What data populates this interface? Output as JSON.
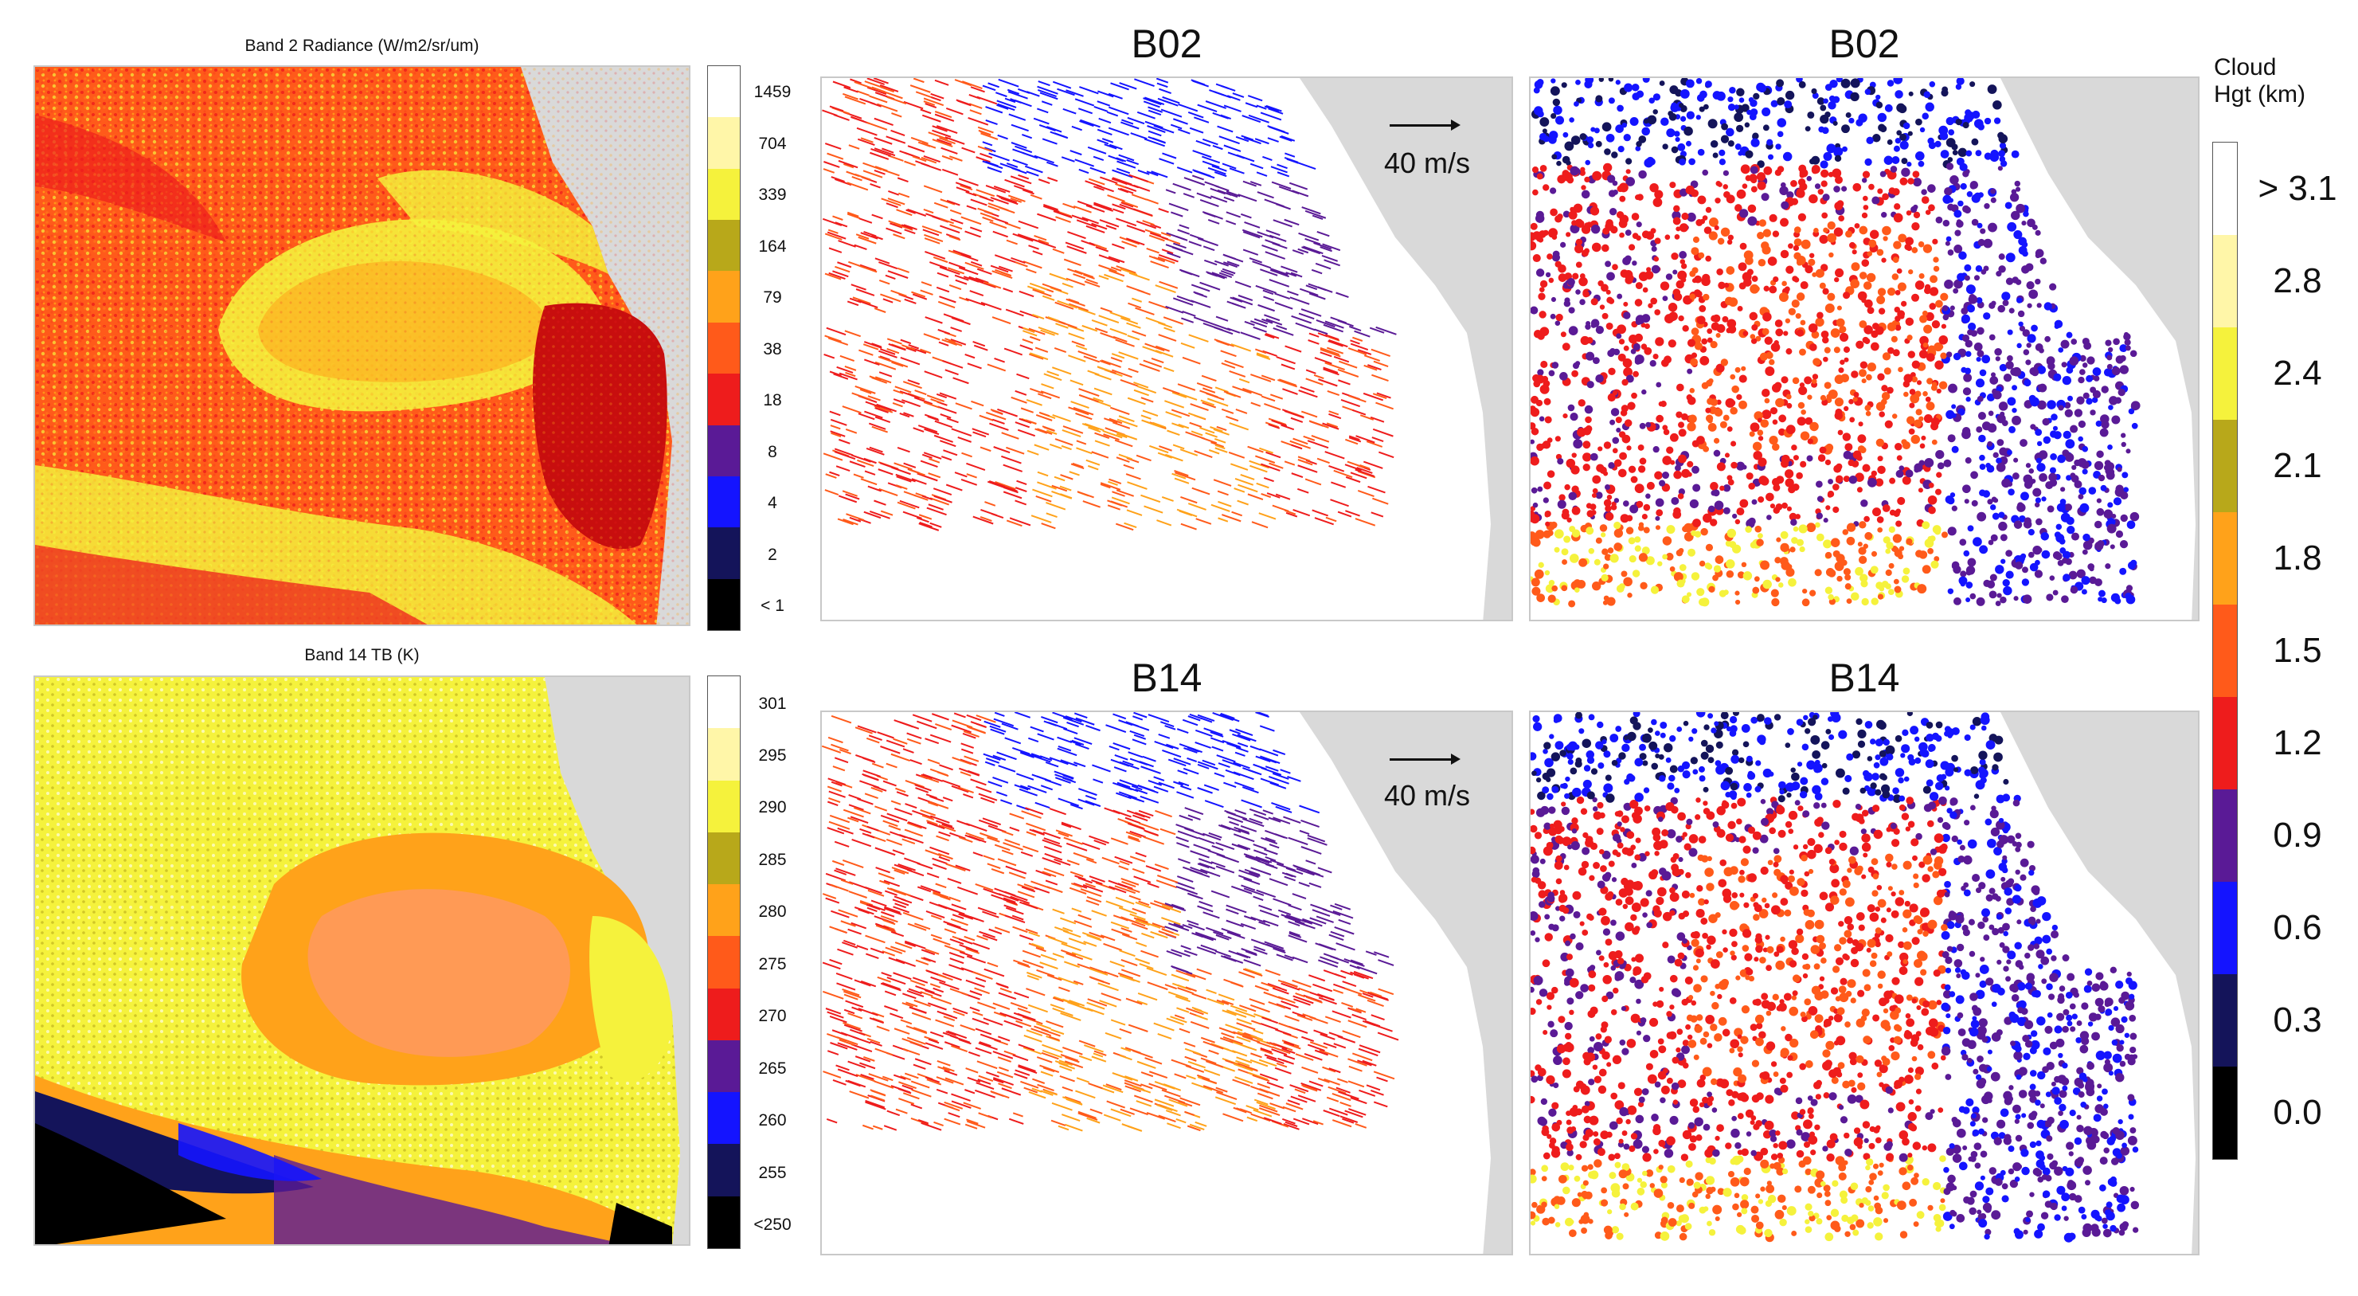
{
  "figure": {
    "panel_titles": {
      "band2": "Band 2 Radiance (W/m2/sr/um)",
      "band14": "Band 14 TB (K)",
      "top_winds": "B02",
      "top_heights": "B02",
      "bottom_winds": "B14",
      "bottom_heights": "B14"
    },
    "wind_scale": {
      "top": "40 m/s",
      "bottom": "40 m/s"
    },
    "colorbar_band2": {
      "ticks": [
        "1459",
        "704",
        "339",
        "164",
        "79",
        "38",
        "18",
        "8",
        "4",
        "2",
        "< 1"
      ],
      "colors": [
        "#ffffff",
        "#fff6a8",
        "#f5f23c",
        "#b8a81a",
        "#ffa21a",
        "#ff5a1a",
        "#ee1c1c",
        "#5a1a96",
        "#1414ff",
        "#14145a",
        "#000000"
      ]
    },
    "colorbar_band14": {
      "ticks": [
        "301",
        "295",
        "290",
        "285",
        "280",
        "275",
        "270",
        "265",
        "260",
        "255",
        "<250"
      ],
      "colors": [
        "#ffffff",
        "#fff6a8",
        "#f5f23c",
        "#b8a81a",
        "#ffa21a",
        "#ff5a1a",
        "#ee1c1c",
        "#5a1a96",
        "#1414ff",
        "#14145a",
        "#000000"
      ]
    },
    "colorbar_height": {
      "title_line1": "Cloud",
      "title_line2": "Hgt (km)",
      "ticks": [
        "> 3.1",
        "2.8",
        "2.4",
        "2.1",
        "1.8",
        "1.5",
        "1.2",
        "0.9",
        "0.6",
        "0.3",
        "0.0"
      ],
      "colors": [
        "#ffffff",
        "#fff6a8",
        "#f5f23c",
        "#b8a81a",
        "#ffa21a",
        "#ff5a1a",
        "#ee1c1c",
        "#5a1a96",
        "#1414ff",
        "#14145a",
        "#000000"
      ]
    }
  }
}
